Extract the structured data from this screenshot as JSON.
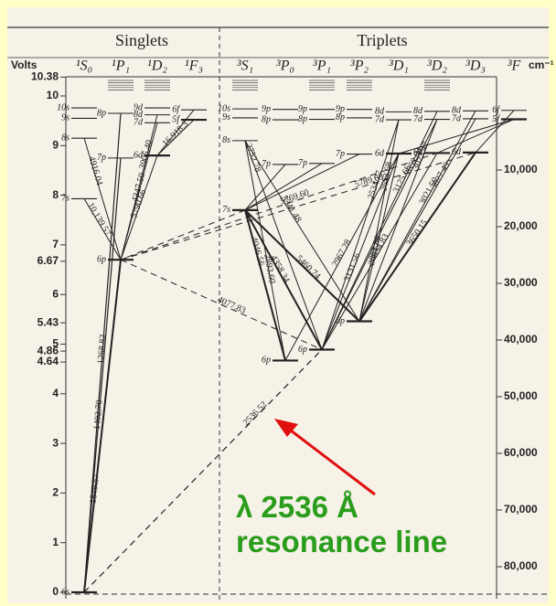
{
  "header": {
    "singlets": "Singlets",
    "triplets": "Triplets",
    "volts": "Volts",
    "wavenumber_unit": "cm⁻¹"
  },
  "volt_ticks": [
    10.38,
    10,
    9,
    8,
    7,
    6.67,
    6,
    5.43,
    5,
    4.86,
    4.64,
    4,
    3,
    2,
    1,
    0
  ],
  "wavenumber_ticks": [
    {
      "value": 10000,
      "label": "10,000"
    },
    {
      "value": 20000,
      "label": "20,000"
    },
    {
      "value": 30000,
      "label": "30,000"
    },
    {
      "value": 40000,
      "label": "40,000"
    },
    {
      "value": 50000,
      "label": "50,000"
    },
    {
      "value": 60000,
      "label": "60,000"
    },
    {
      "value": 70000,
      "label": "70,000"
    },
    {
      "value": 80000,
      "label": "80,000"
    }
  ],
  "columns": [
    {
      "name": "¹S₀",
      "levels": [
        {
          "label": "6s",
          "energy": 0
        },
        {
          "label": "7s",
          "energy": 7.93
        },
        {
          "label": "8s",
          "energy": 9.15
        },
        {
          "label": "9s",
          "energy": 9.55
        },
        {
          "label": "10s",
          "energy": 9.76
        }
      ]
    },
    {
      "name": "¹P₁",
      "levels": [
        {
          "label": "6p",
          "energy": 6.7
        },
        {
          "label": "7p",
          "energy": 8.75
        },
        {
          "label": "8p",
          "energy": 9.65
        }
      ]
    },
    {
      "name": "¹D₂",
      "levels": [
        {
          "label": "6d",
          "energy": 8.8
        },
        {
          "label": "7d",
          "energy": 9.46
        },
        {
          "label": "8d",
          "energy": 9.62
        },
        {
          "label": "9d",
          "energy": 9.76
        }
      ]
    },
    {
      "name": "¹F₃",
      "levels": [
        {
          "label": "5f",
          "energy": 9.52
        },
        {
          "label": "6f",
          "energy": 9.72
        }
      ]
    },
    {
      "name": "³S₁",
      "levels": [
        {
          "label": "7s",
          "energy": 7.7
        },
        {
          "label": "8s",
          "energy": 9.1
        },
        {
          "label": "9s",
          "energy": 9.56
        },
        {
          "label": "10s",
          "energy": 9.74
        }
      ]
    },
    {
      "name": "³P₀",
      "levels": [
        {
          "label": "6p",
          "energy": 4.67
        },
        {
          "label": "7p",
          "energy": 8.62
        },
        {
          "label": "8p",
          "energy": 9.52
        },
        {
          "label": "9p",
          "energy": 9.73
        }
      ]
    },
    {
      "name": "³P₁",
      "levels": [
        {
          "label": "6p",
          "energy": 4.89
        },
        {
          "label": "7p",
          "energy": 8.64
        },
        {
          "label": "8p",
          "energy": 9.53
        },
        {
          "label": "9p",
          "energy": 9.73
        }
      ]
    },
    {
      "name": "³P₂",
      "levels": [
        {
          "label": "6p",
          "energy": 5.46
        },
        {
          "label": "7p",
          "energy": 8.83
        },
        {
          "label": "8p",
          "energy": 9.56
        },
        {
          "label": "9p",
          "energy": 9.73
        }
      ]
    },
    {
      "name": "³D₁",
      "levels": [
        {
          "label": "6d",
          "energy": 8.84
        },
        {
          "label": "7d",
          "energy": 9.52
        },
        {
          "label": "8d",
          "energy": 9.68
        }
      ]
    },
    {
      "name": "³D₂",
      "levels": [
        {
          "label": "6d",
          "energy": 8.85
        },
        {
          "label": "7d",
          "energy": 9.53
        },
        {
          "label": "8d",
          "energy": 9.69
        }
      ]
    },
    {
      "name": "³D₃",
      "levels": [
        {
          "label": "6d",
          "energy": 8.86
        },
        {
          "label": "7d",
          "energy": 9.54
        },
        {
          "label": "8d",
          "energy": 9.7
        }
      ]
    },
    {
      "name": "³F",
      "levels": [
        {
          "label": "5f",
          "energy": 9.53
        },
        {
          "label": "6f",
          "energy": 9.71
        }
      ]
    }
  ],
  "wavelengths": [
    "2536.52",
    "1849.57",
    "1402.70",
    "1268.82",
    "4916.04",
    "10,139.57",
    "3906.40",
    "4347.50",
    "5790.66",
    "16,918.3",
    "4077.83",
    "2752.78",
    "4046.56",
    "4358.34",
    "5460.74",
    "3341.48",
    "2893.60",
    "5769.60",
    "5789.69",
    "2967.28",
    "3131.56",
    "3654.83",
    "3650.15",
    "3662.88",
    "2534.77",
    "2653.68",
    "3023.47",
    "2652.04",
    "3125.66",
    "3027.49",
    "3021.50"
  ],
  "annotation": {
    "line1": "λ 2536 Å",
    "line2": "resonance line"
  }
}
